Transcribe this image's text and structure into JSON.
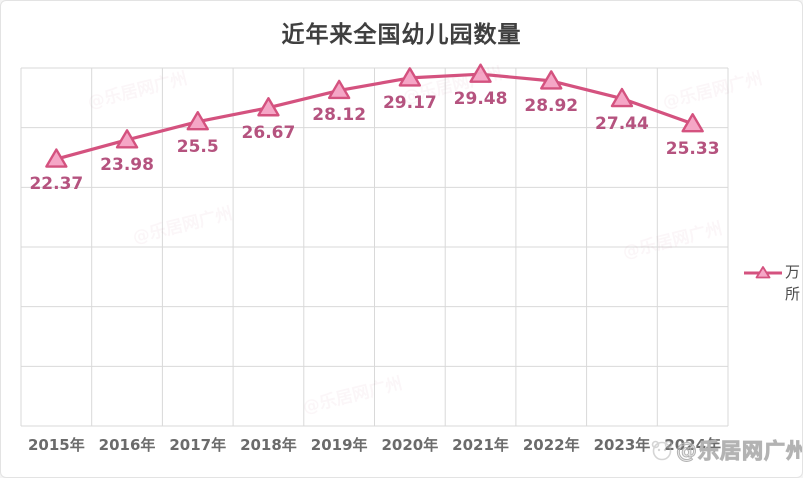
{
  "chart_data": {
    "type": "line",
    "title": "近年来全国幼儿园数量",
    "categories": [
      "2015年",
      "2016年",
      "2017年",
      "2018年",
      "2019年",
      "2020年",
      "2021年",
      "2022年",
      "2023年",
      "2024年"
    ],
    "series": [
      {
        "name": "万所",
        "values": [
          22.37,
          23.98,
          25.5,
          26.67,
          28.12,
          29.17,
          29.48,
          28.92,
          27.44,
          25.33
        ],
        "data_labels": [
          "22.37",
          "23.98",
          "25.5",
          "26.67",
          "28.12",
          "29.17",
          "29.48",
          "28.92",
          "27.44",
          "25.33"
        ]
      }
    ],
    "xlabel": "",
    "ylabel": "",
    "ylim": [
      0,
      30
    ],
    "grid_step": 5,
    "grid": true,
    "legend_position": "right",
    "marker": "triangle"
  },
  "legend": {
    "label": "万所"
  },
  "watermark": {
    "text": "@乐居网广州"
  },
  "colors": {
    "line": "#d4527f",
    "marker_fill": "#f5a6c6",
    "marker_stroke": "#d4527f",
    "data_label": "#b5537f",
    "grid": "#d9d9d9",
    "title": "#3f3f3f",
    "axis_label": "#6b6b6b"
  }
}
